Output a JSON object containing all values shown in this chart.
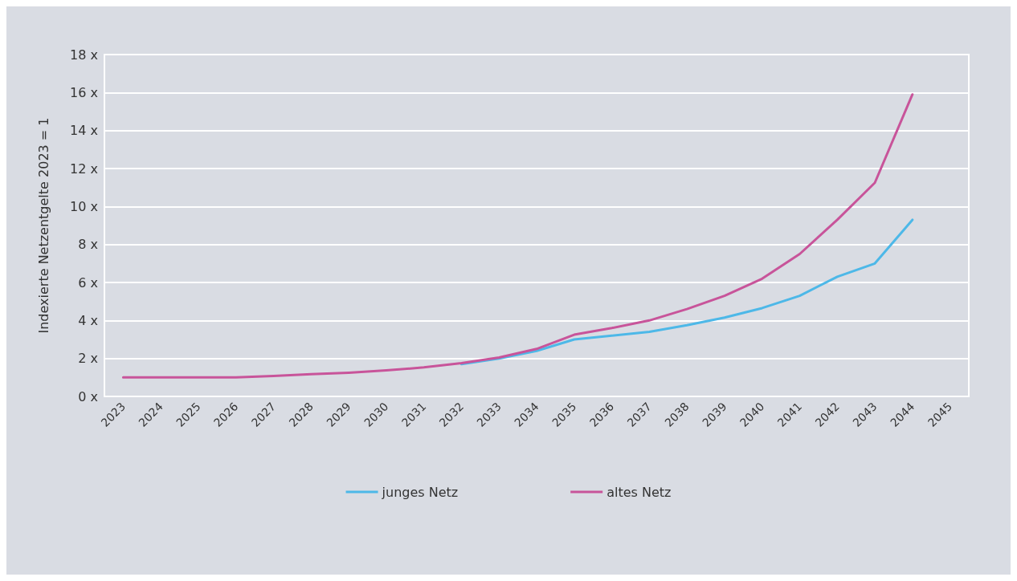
{
  "chart_data": {
    "type": "line",
    "ylabel": "Indexierte Netzentgelte 2023 = 1",
    "categories": [
      "2023",
      "2024",
      "2025",
      "2026",
      "2027",
      "2028",
      "2029",
      "2030",
      "2031",
      "2032",
      "2033",
      "2034",
      "2035",
      "2036",
      "2037",
      "2038",
      "2039",
      "2040",
      "2041",
      "2042",
      "2043",
      "2044",
      "2045"
    ],
    "series": [
      {
        "name": "junges Netz",
        "color": "#4db8e8",
        "values": [
          null,
          null,
          null,
          null,
          null,
          null,
          null,
          null,
          null,
          1.7,
          2.0,
          2.4,
          3.0,
          3.2,
          3.4,
          3.75,
          4.15,
          4.65,
          5.3,
          6.3,
          7.0,
          9.3,
          null
        ]
      },
      {
        "name": "altes Netz",
        "color": "#c8549a",
        "values": [
          1,
          1,
          1,
          1,
          1.08,
          1.17,
          1.25,
          1.37,
          1.53,
          1.75,
          2.05,
          2.5,
          3.25,
          3.6,
          4.0,
          4.6,
          5.3,
          6.2,
          7.5,
          9.3,
          11.25,
          15.9,
          null
        ]
      }
    ],
    "ylim": [
      0,
      18
    ],
    "yticks": [
      {
        "value": 0,
        "label": "0 x"
      },
      {
        "value": 2,
        "label": "2 x"
      },
      {
        "value": 4,
        "label": "4 x"
      },
      {
        "value": 6,
        "label": "6 x"
      },
      {
        "value": 8,
        "label": "8 x"
      },
      {
        "value": 10,
        "label": "10 x"
      },
      {
        "value": 12,
        "label": "12 x"
      },
      {
        "value": 14,
        "label": "14 x"
      },
      {
        "value": 16,
        "label": "16 x"
      },
      {
        "value": 18,
        "label": "18 x"
      }
    ],
    "grid": "y",
    "legend": "bottom",
    "marker": "none",
    "line_style": "solid"
  }
}
